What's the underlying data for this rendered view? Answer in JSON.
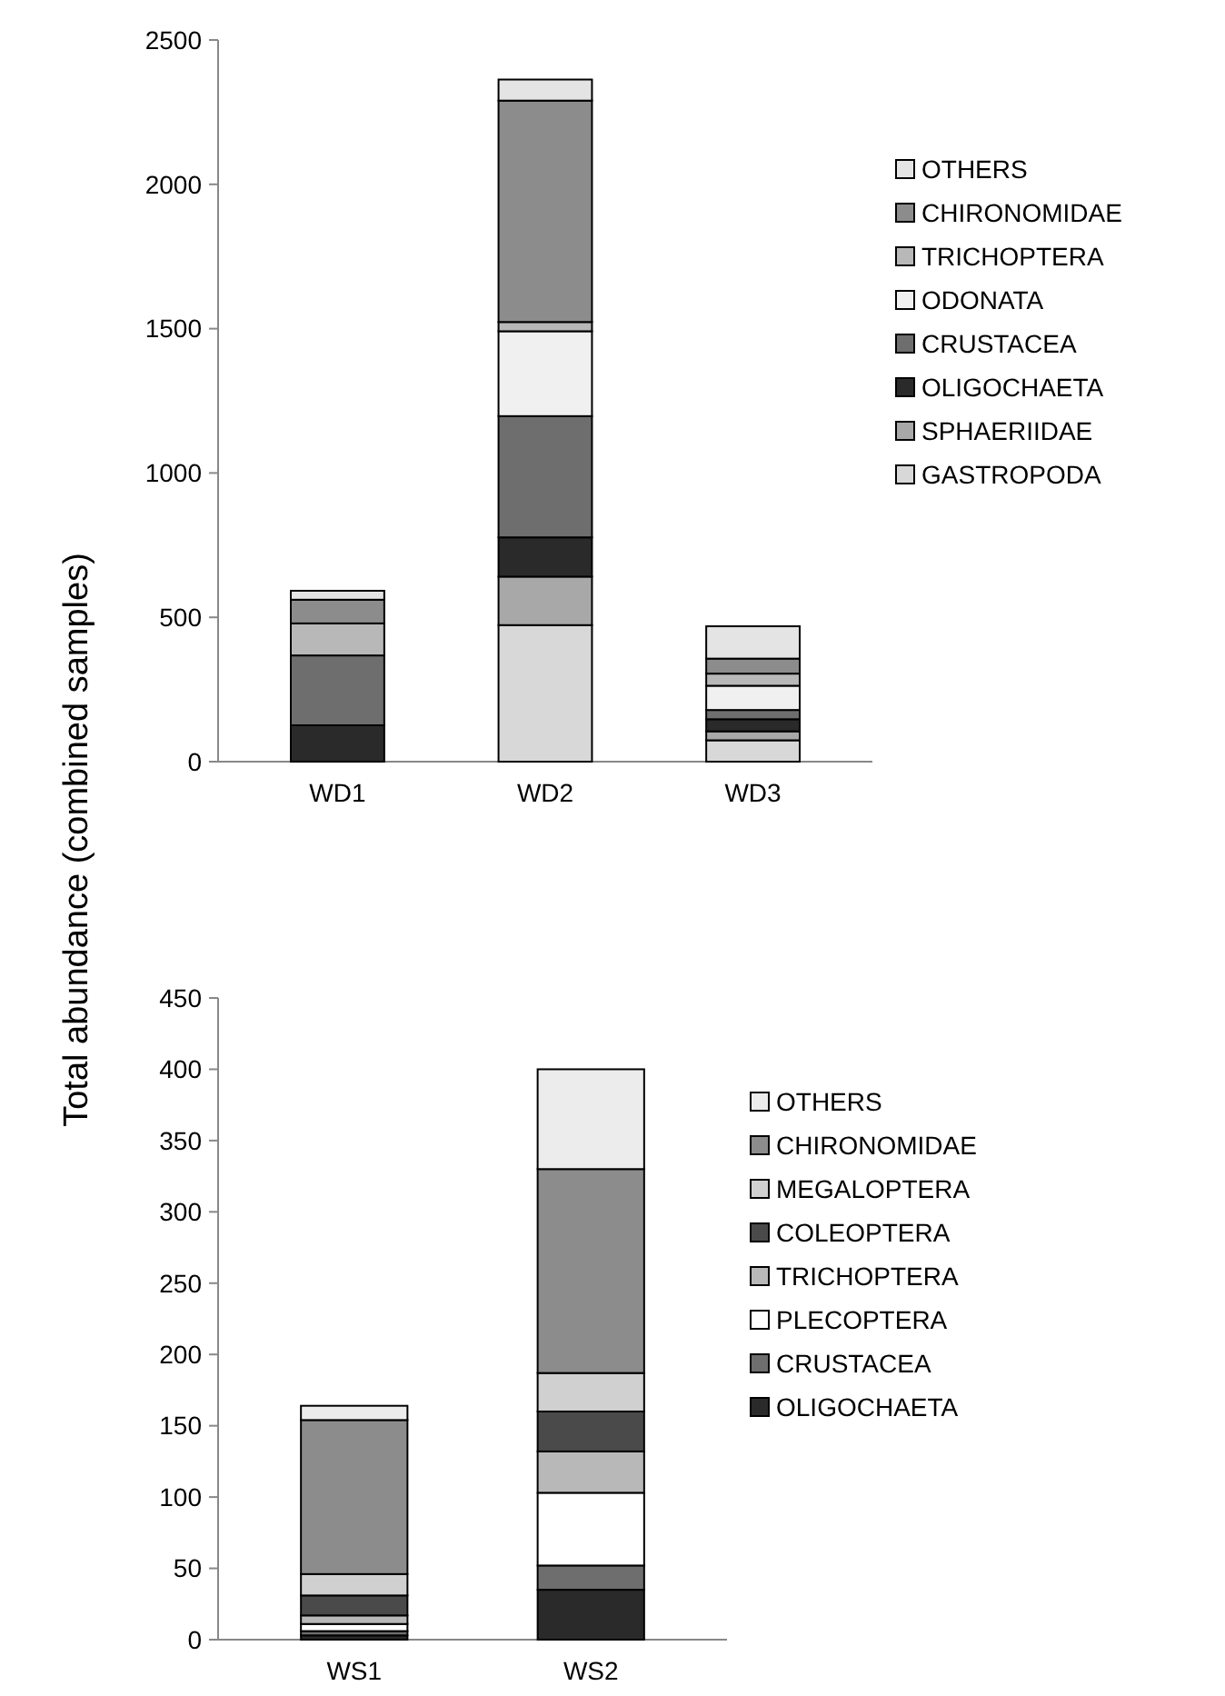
{
  "chart_data": [
    {
      "type": "bar",
      "stacked": true,
      "ylabel": "Total abundance (combined samples)",
      "categories": [
        "WD1",
        "WD2",
        "WD3"
      ],
      "ylim": [
        0,
        2500
      ],
      "yticks": [
        0,
        500,
        1000,
        1500,
        2000,
        2500
      ],
      "legend": "right",
      "series": [
        {
          "name": "GASTROPODA",
          "color": "#d8d8d8",
          "values": [
            0,
            473,
            74
          ]
        },
        {
          "name": "SPHAERIIDAE",
          "color": "#a8a8a8",
          "values": [
            0,
            168,
            31
          ]
        },
        {
          "name": "OLIGOCHAETA",
          "color": "#2a2a2a",
          "values": [
            126,
            136,
            42
          ]
        },
        {
          "name": "CRUSTACEA",
          "color": "#6e6e6e",
          "values": [
            242,
            420,
            32
          ]
        },
        {
          "name": "ODONATA",
          "color": "#f0f0f0",
          "values": [
            0,
            294,
            84
          ]
        },
        {
          "name": "TRICHOPTERA",
          "color": "#b8b8b8",
          "values": [
            111,
            32,
            42
          ]
        },
        {
          "name": "CHIRONOMIDAE",
          "color": "#8c8c8c",
          "values": [
            82,
            767,
            52
          ]
        },
        {
          "name": "OTHERS",
          "color": "#e4e4e4",
          "values": [
            31,
            73,
            112
          ]
        }
      ]
    },
    {
      "type": "bar",
      "stacked": true,
      "categories": [
        "WS1",
        "WS2"
      ],
      "ylim": [
        0,
        450
      ],
      "yticks": [
        0,
        50,
        100,
        150,
        200,
        250,
        300,
        350,
        400,
        450
      ],
      "legend": "right",
      "series": [
        {
          "name": "OLIGOCHAETA",
          "color": "#2a2a2a",
          "values": [
            3,
            35
          ]
        },
        {
          "name": "CRUSTACEA",
          "color": "#6e6e6e",
          "values": [
            3,
            17
          ]
        },
        {
          "name": "PLECOPTERA",
          "color": "#ffffff",
          "values": [
            5,
            51
          ]
        },
        {
          "name": "TRICHOPTERA",
          "color": "#b8b8b8",
          "values": [
            6,
            29
          ]
        },
        {
          "name": "COLEOPTERA",
          "color": "#4a4a4a",
          "values": [
            14,
            28
          ]
        },
        {
          "name": "MEGALOPTERA",
          "color": "#d0d0d0",
          "values": [
            15,
            27
          ]
        },
        {
          "name": "CHIRONOMIDAE",
          "color": "#8c8c8c",
          "values": [
            108,
            143
          ]
        },
        {
          "name": "OTHERS",
          "color": "#ececec",
          "values": [
            10,
            70
          ]
        }
      ]
    }
  ]
}
